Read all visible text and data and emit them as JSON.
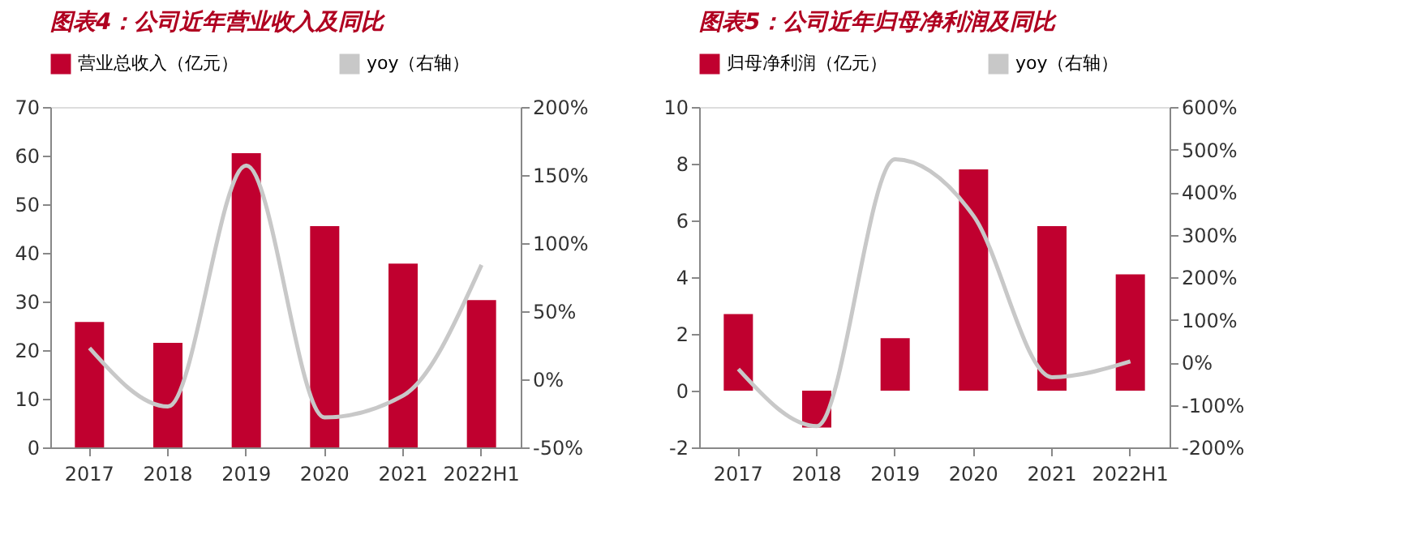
{
  "chart_data": [
    {
      "type": "bar",
      "title": "图表4：公司近年营业收入及同比",
      "categories": [
        "2017",
        "2018",
        "2019",
        "2020",
        "2021",
        "2022H1"
      ],
      "series": [
        {
          "name": "营业总收入（亿元）",
          "color": "#c0002f",
          "values": [
            25.8,
            21.5,
            60.5,
            45.5,
            37.8,
            30.3
          ]
        },
        {
          "name": "yoy（右轴）",
          "type": "line",
          "axis": "y2",
          "color": "#c8c8c8",
          "values": [
            23,
            -20,
            157,
            -28,
            -12,
            84
          ]
        }
      ],
      "ylim": [
        0,
        70
      ],
      "yticks": [
        0,
        10,
        20,
        30,
        40,
        50,
        60,
        70
      ],
      "y2lim": [
        -50,
        200
      ],
      "y2ticks": [
        {
          "value": -50,
          "label": "-50%"
        },
        {
          "value": 0,
          "label": "0%"
        },
        {
          "value": 50,
          "label": "50%"
        },
        {
          "value": 100,
          "label": "100%"
        },
        {
          "value": 150,
          "label": "150%"
        },
        {
          "value": 200,
          "label": "200%"
        }
      ],
      "legend": "top",
      "grid": false
    },
    {
      "type": "bar",
      "title": "图表5：公司近年归母净利润及同比",
      "categories": [
        "2017",
        "2018",
        "2019",
        "2020",
        "2021",
        "2022H1"
      ],
      "series": [
        {
          "name": "归母净利润（亿元）",
          "color": "#c0002f",
          "values": [
            2.7,
            -1.3,
            1.85,
            7.8,
            5.8,
            4.1
          ]
        },
        {
          "name": "yoy（右轴）",
          "type": "line",
          "axis": "y2",
          "color": "#c8c8c8",
          "values": [
            -16,
            -150,
            477,
            344,
            -35,
            2
          ]
        }
      ],
      "ylim": [
        -2,
        10
      ],
      "yticks": [
        -2,
        0,
        2,
        4,
        6,
        8,
        10
      ],
      "y2lim": [
        -200,
        600
      ],
      "y2ticks": [
        {
          "value": -200,
          "label": "-200%"
        },
        {
          "value": -100,
          "label": "-100%"
        },
        {
          "value": 0,
          "label": "0%"
        },
        {
          "value": 100,
          "label": "100%"
        },
        {
          "value": 200,
          "label": "200%"
        },
        {
          "value": 300,
          "label": "300%"
        },
        {
          "value": 400,
          "label": "400%"
        },
        {
          "value": 500,
          "label": "500%"
        },
        {
          "value": 600,
          "label": "600%"
        }
      ],
      "legend": "top",
      "grid": false
    }
  ]
}
